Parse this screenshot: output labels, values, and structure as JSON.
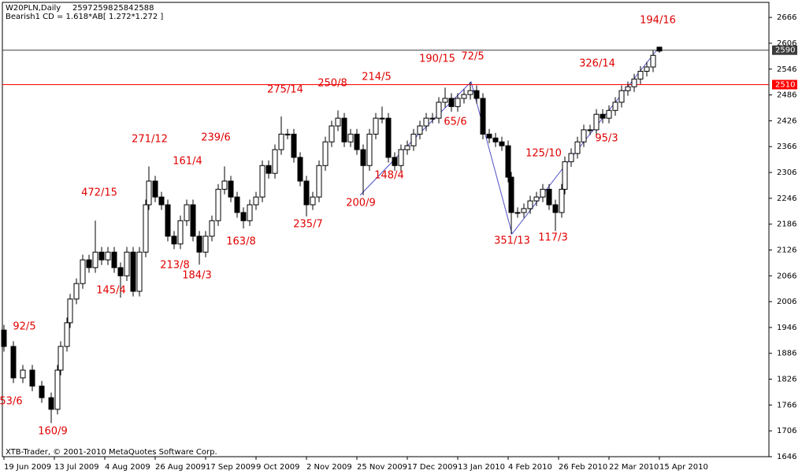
{
  "chart_data": {
    "type": "candlestick",
    "title": "W20PLN,Daily",
    "header_values": [
      2597,
      2598,
      2584,
      2588
    ],
    "subtitle": "Bearish1 CD = 1.618*AB[ 1.272*1.272 ]",
    "copyright": "XTB-Trader, © 2001-2010 MetaQuotes Software Corp.",
    "up_color": "#ffffff",
    "down_color": "#000000",
    "xlim": [
      -0.5,
      242.75
    ],
    "ylim": [
      1646,
      2701
    ],
    "yticks": [
      2666,
      2606,
      2546,
      2486,
      2426,
      2366,
      2306,
      2246,
      2186,
      2126,
      2066,
      2006,
      1946,
      1886,
      1826,
      1766,
      1706,
      1646
    ],
    "xticks": [
      {
        "value": 0,
        "label": "19 Jun 2009"
      },
      {
        "value": 16,
        "label": "13 Jul 2009"
      },
      {
        "value": 32,
        "label": "4 Aug 2009"
      },
      {
        "value": 48,
        "label": "26 Aug 2009"
      },
      {
        "value": 64,
        "label": "17 Sep 2009"
      },
      {
        "value": 80,
        "label": "9 Oct 2009"
      },
      {
        "value": 96,
        "label": "2 Nov 2009"
      },
      {
        "value": 112,
        "label": "25 Nov 2009"
      },
      {
        "value": 128,
        "label": "17 Dec 2009"
      },
      {
        "value": 144,
        "label": "13 Jan 2010"
      },
      {
        "value": 160,
        "label": "4 Feb 2010"
      },
      {
        "value": 176,
        "label": "26 Feb 2010"
      },
      {
        "value": 192,
        "label": "22 Mar 2010"
      },
      {
        "value": 208,
        "label": "15 Apr 2010"
      }
    ],
    "hlines": [
      {
        "value": 2590,
        "color": "#3c3c3c"
      },
      {
        "value": 2510,
        "color": "#ff0000"
      }
    ],
    "annotation_color": "#e00000",
    "annotations": [
      "194/16",
      "190/15",
      "72/5",
      "326/14",
      "275/14",
      "250/8",
      "214/5",
      "65/6",
      "271/12",
      "239/6",
      "161/4",
      "125/10",
      "95/3",
      "472/15",
      "148/4",
      "200/9",
      "235/7",
      "163/8",
      "213/8",
      "184/3",
      "145/4",
      "351/13",
      "117/3",
      "92/5",
      "53/6",
      "160/9"
    ],
    "candles": {
      "x": [
        0,
        3,
        6,
        9,
        12,
        15,
        17,
        18,
        20,
        21,
        23,
        25,
        27,
        29,
        31,
        33,
        35,
        37,
        39,
        41,
        43,
        45,
        46,
        48,
        50,
        52,
        54,
        56,
        58,
        60,
        62,
        64,
        66,
        68,
        70,
        72,
        74,
        76,
        78,
        80,
        82,
        84,
        86,
        88,
        90,
        92,
        94,
        96,
        98,
        100,
        102,
        104,
        106,
        108,
        110,
        112,
        114,
        116,
        118,
        120,
        122,
        124,
        126,
        128,
        130,
        132,
        134,
        136,
        138,
        140,
        142,
        144,
        146,
        148,
        150,
        152,
        154,
        156,
        158,
        160,
        161,
        163,
        165,
        167,
        169,
        171,
        173,
        175,
        177,
        178,
        180,
        182,
        184,
        186,
        188,
        190,
        192,
        194,
        196,
        198,
        200,
        202,
        204,
        206,
        208
      ],
      "open": [
        1940,
        1902,
        1829,
        1847,
        1810,
        1783,
        1756,
        1847,
        1902,
        1957,
        2012,
        2048,
        2103,
        2085,
        2121,
        2103,
        2121,
        2085,
        2066,
        2121,
        2030,
        2121,
        2231,
        2286,
        2249,
        2231,
        2158,
        2140,
        2194,
        2231,
        2158,
        2121,
        2158,
        2194,
        2267,
        2286,
        2249,
        2213,
        2194,
        2231,
        2249,
        2322,
        2304,
        2359,
        2395,
        2395,
        2341,
        2286,
        2231,
        2249,
        2322,
        2377,
        2414,
        2432,
        2377,
        2395,
        2359,
        2322,
        2395,
        2432,
        2432,
        2341,
        2322,
        2359,
        2368,
        2395,
        2414,
        2432,
        2432,
        2469,
        2478,
        2459,
        2478,
        2487,
        2496,
        2478,
        2395,
        2386,
        2377,
        2368,
        2295,
        2213,
        2213,
        2222,
        2240,
        2249,
        2267,
        2231,
        2213,
        2267,
        2331,
        2350,
        2377,
        2405,
        2405,
        2441,
        2432,
        2450,
        2469,
        2496,
        2505,
        2523,
        2541,
        2551,
        2597
      ],
      "high": [
        1952,
        1914,
        1859,
        1859,
        1822,
        1795,
        1859,
        1914,
        1969,
        2024,
        2060,
        2115,
        2115,
        2194,
        2133,
        2133,
        2133,
        2097,
        2133,
        2133,
        2133,
        2243,
        2320,
        2298,
        2261,
        2243,
        2170,
        2206,
        2243,
        2243,
        2170,
        2170,
        2206,
        2279,
        2320,
        2298,
        2261,
        2225,
        2243,
        2261,
        2334,
        2334,
        2371,
        2436,
        2407,
        2407,
        2353,
        2298,
        2261,
        2334,
        2389,
        2426,
        2450,
        2444,
        2407,
        2407,
        2371,
        2407,
        2444,
        2459,
        2444,
        2353,
        2371,
        2380,
        2407,
        2426,
        2444,
        2444,
        2481,
        2503,
        2490,
        2490,
        2499,
        2516,
        2508,
        2490,
        2407,
        2398,
        2389,
        2380,
        2307,
        2225,
        2234,
        2252,
        2261,
        2279,
        2279,
        2243,
        2279,
        2343,
        2362,
        2389,
        2417,
        2417,
        2453,
        2453,
        2462,
        2481,
        2508,
        2517,
        2535,
        2553,
        2563,
        2590,
        2598
      ],
      "low": [
        1890,
        1817,
        1817,
        1798,
        1771,
        1724,
        1744,
        1835,
        1890,
        1945,
        2000,
        2036,
        2073,
        2073,
        2091,
        2091,
        2073,
        2015,
        2054,
        2018,
        2018,
        2109,
        2219,
        2237,
        2219,
        2146,
        2128,
        2128,
        2182,
        2146,
        2092,
        2109,
        2146,
        2182,
        2255,
        2237,
        2201,
        2176,
        2182,
        2219,
        2237,
        2292,
        2292,
        2347,
        2383,
        2329,
        2274,
        2204,
        2219,
        2237,
        2310,
        2365,
        2402,
        2365,
        2365,
        2347,
        2253,
        2310,
        2383,
        2420,
        2329,
        2310,
        2310,
        2347,
        2356,
        2383,
        2402,
        2420,
        2420,
        2457,
        2447,
        2447,
        2466,
        2475,
        2466,
        2383,
        2374,
        2365,
        2356,
        2283,
        2163,
        2201,
        2201,
        2210,
        2228,
        2237,
        2219,
        2170,
        2201,
        2255,
        2319,
        2338,
        2365,
        2393,
        2393,
        2420,
        2420,
        2438,
        2457,
        2484,
        2493,
        2511,
        2529,
        2539,
        2584
      ],
      "close": [
        1902,
        1829,
        1847,
        1810,
        1783,
        1756,
        1847,
        1902,
        1957,
        2012,
        2048,
        2103,
        2085,
        2121,
        2103,
        2121,
        2085,
        2066,
        2121,
        2030,
        2121,
        2231,
        2286,
        2249,
        2231,
        2158,
        2140,
        2194,
        2231,
        2158,
        2121,
        2158,
        2194,
        2267,
        2286,
        2249,
        2213,
        2194,
        2231,
        2249,
        2322,
        2304,
        2359,
        2395,
        2395,
        2341,
        2286,
        2231,
        2249,
        2322,
        2377,
        2414,
        2432,
        2377,
        2395,
        2359,
        2322,
        2395,
        2432,
        2432,
        2341,
        2322,
        2359,
        2368,
        2395,
        2414,
        2432,
        2432,
        2469,
        2478,
        2459,
        2478,
        2487,
        2496,
        2478,
        2395,
        2386,
        2377,
        2368,
        2295,
        2213,
        2213,
        2222,
        2240,
        2249,
        2267,
        2231,
        2213,
        2267,
        2331,
        2350,
        2377,
        2405,
        2405,
        2441,
        2432,
        2450,
        2469,
        2496,
        2505,
        2523,
        2541,
        2551,
        2578,
        2588
      ]
    }
  }
}
